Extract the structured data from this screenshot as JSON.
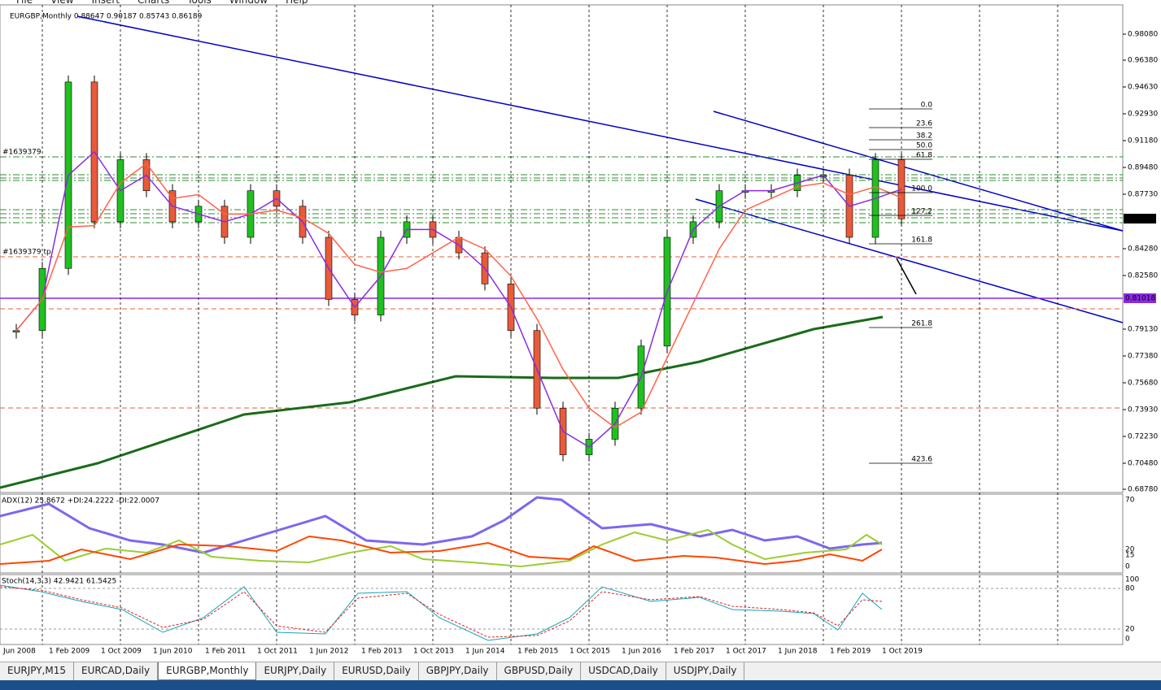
{
  "menu": [
    "File",
    "View",
    "Insert",
    "Charts",
    "Tools",
    "Window",
    "Help"
  ],
  "chart": {
    "header": "EURGBP,Monthly  0.88647 0.90187 0.85743 0.86189",
    "price_ticks": [
      "0.98080",
      "0.96380",
      "0.94630",
      "0.92930",
      "0.91180",
      "0.89480",
      "0.87730",
      "0.84280",
      "0.82580",
      "0.79130",
      "0.77380",
      "0.75680",
      "0.73930",
      "0.72230",
      "0.70480",
      "0.68780"
    ],
    "ylim": [
      0.6878,
      0.9808
    ],
    "current_price": "0.86183",
    "line_price": "0.81018",
    "closes": [
      0.79,
      0.83,
      0.95,
      0.86,
      0.9,
      0.88,
      0.86,
      0.87,
      0.85,
      0.88,
      0.87,
      0.85,
      0.81,
      0.8,
      0.85,
      0.86,
      0.85,
      0.84,
      0.82,
      0.79,
      0.74,
      0.71,
      0.72,
      0.74,
      0.78,
      0.85,
      0.86,
      0.88,
      0.88,
      0.88,
      0.89,
      0.89,
      0.85,
      0.9,
      0.86189
    ],
    "date_labels": [
      "Jun 2008",
      "1 Feb 2009",
      "1 Oct 2009",
      "1 Jun 2010",
      "1 Feb 2011",
      "1 Oct 2011",
      "1 Jun 2012",
      "1 Feb 2013",
      "1 Oct 2013",
      "1 Jun 2014",
      "1 Feb 2015",
      "1 Oct 2015",
      "1 Jun 2016",
      "1 Feb 2017",
      "1 Oct 2017",
      "1 Jun 2018",
      "1 Feb 2019",
      "1 Oct 2019"
    ],
    "fib_levels": [
      "0.0",
      "23.6",
      "38.2",
      "50.0",
      "61.8",
      "100.0",
      "127.2",
      "161.8",
      "261.8",
      "423.6"
    ],
    "order_labels": [
      "#1639379",
      "#1639379 tp"
    ]
  },
  "adx": {
    "label": "ADX(12) 25.8672 +DI:24.2222 -DI:22.0007",
    "ticks": [
      "70",
      "20",
      "15",
      "0"
    ]
  },
  "stoch": {
    "label": "Stoch(14,3,3) 42.9421 61.5425",
    "ticks": [
      "100",
      "80",
      "20",
      "0"
    ]
  },
  "tabs": [
    "EURJPY,M15",
    "EURCAD,Daily",
    "EURGBP,Monthly",
    "EURJPY,Daily",
    "EURUSD,Daily",
    "GBPJPY,Daily",
    "GBPUSD,Daily",
    "USDCAD,Daily",
    "USDJPY,Daily"
  ]
}
